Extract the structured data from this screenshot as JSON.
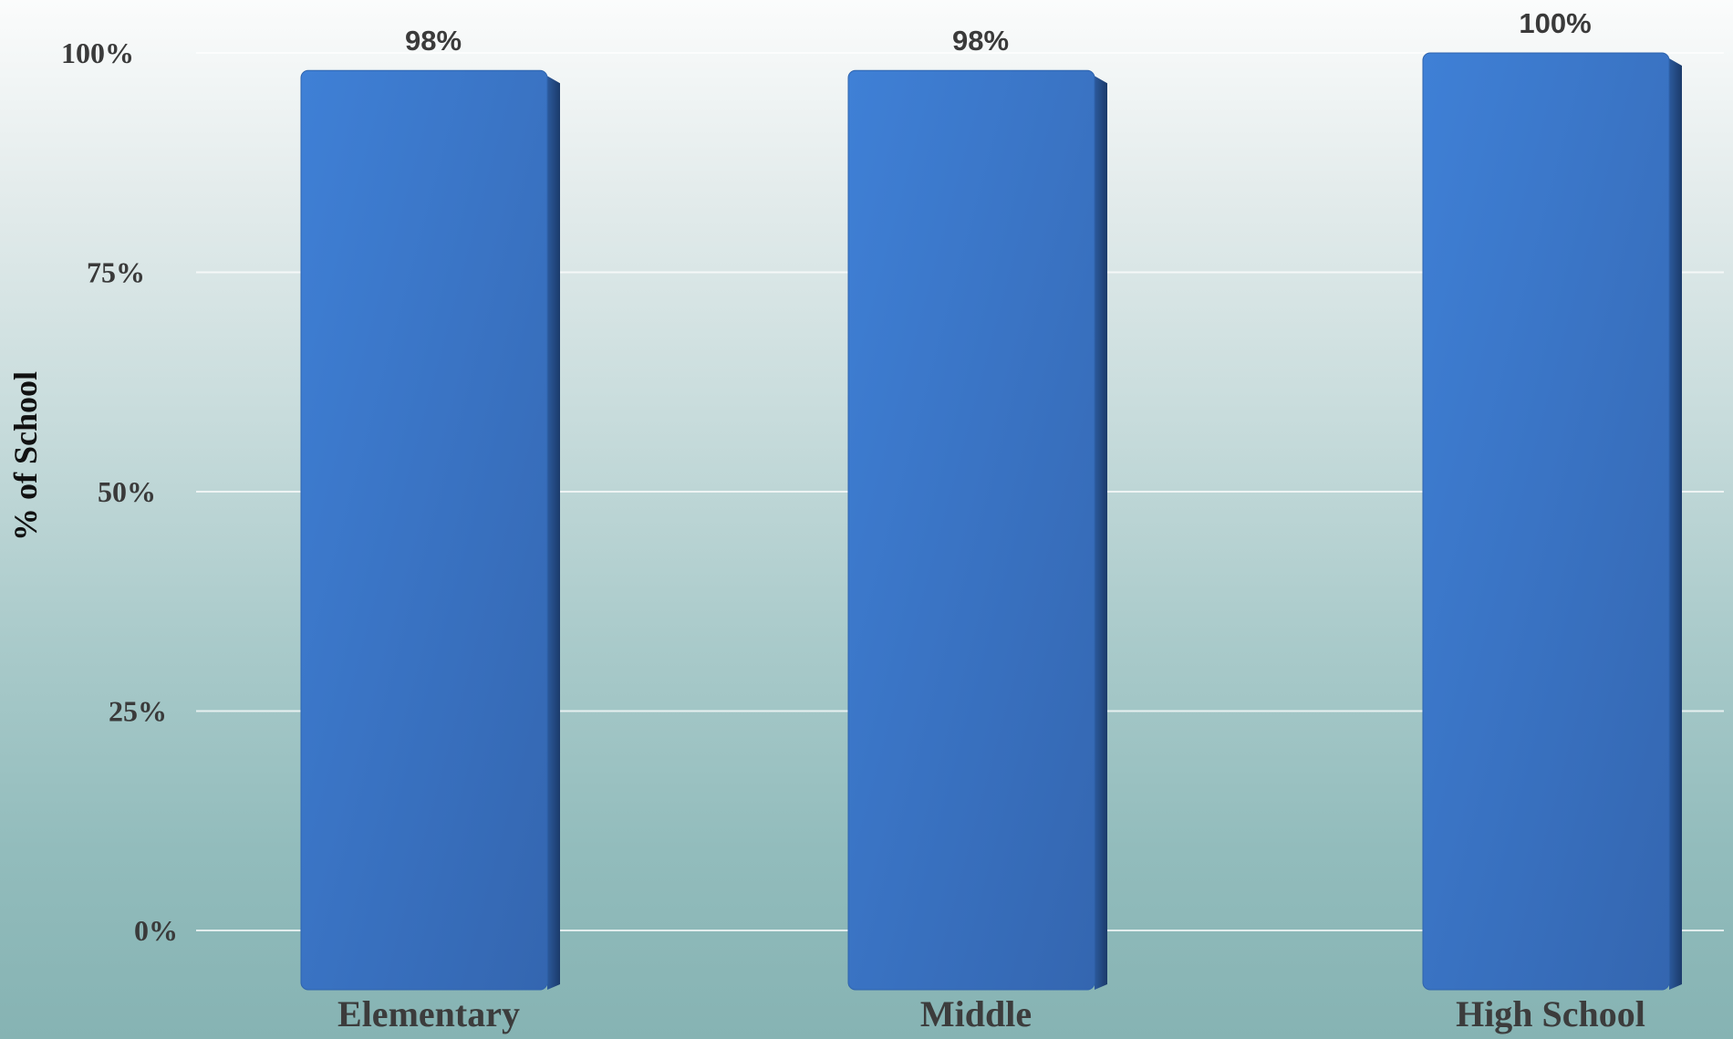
{
  "chart_data": {
    "type": "bar",
    "ylabel": "% of School",
    "xlabel": "",
    "categories": [
      "Elementary",
      "Middle",
      "High School"
    ],
    "values": [
      98,
      98,
      100
    ],
    "data_labels": [
      "98%",
      "98%",
      "100%"
    ],
    "ylim": [
      0,
      100
    ],
    "yticks": [
      0,
      25,
      50,
      75,
      100
    ],
    "ytick_labels": [
      "0%",
      "25%",
      "50%",
      "75%",
      "100%"
    ],
    "grid": true,
    "legend": false,
    "bar_color": "#3c78c8"
  }
}
